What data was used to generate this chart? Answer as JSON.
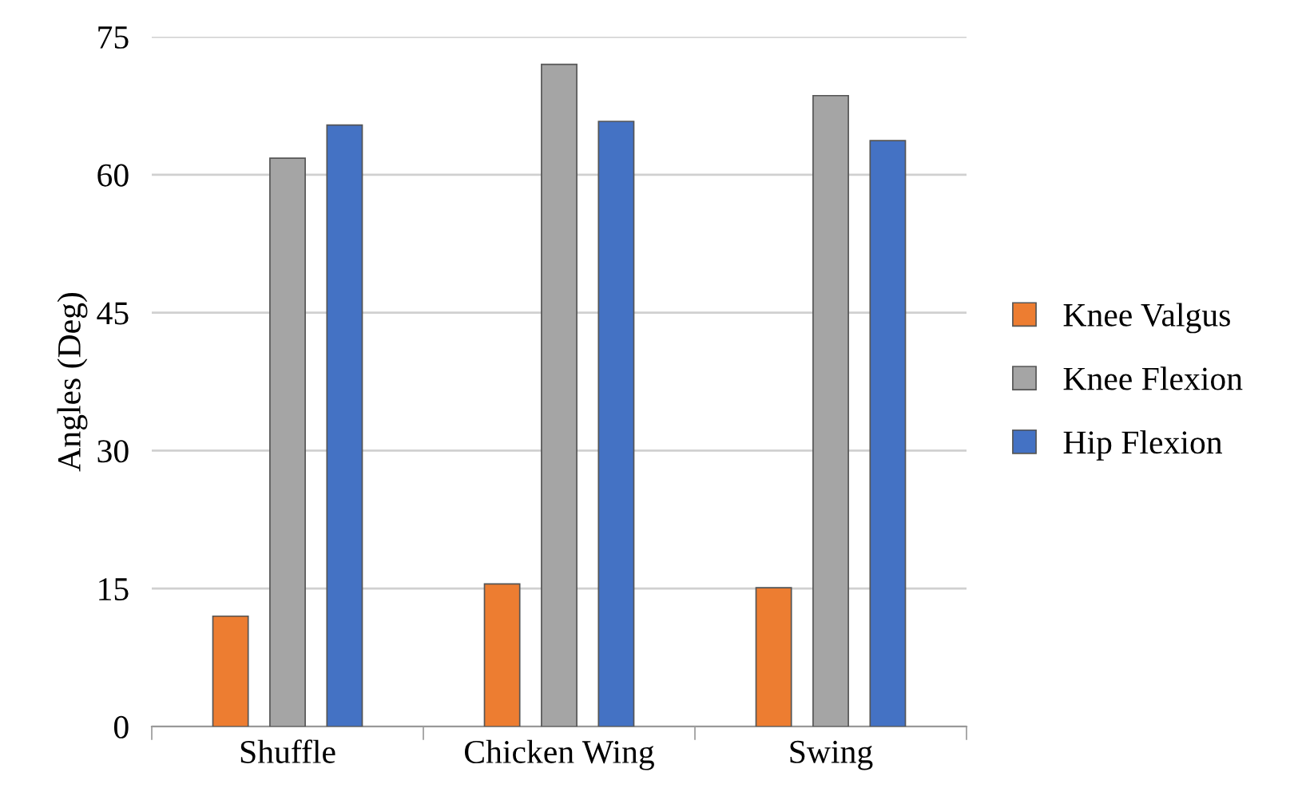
{
  "chart_data": {
    "type": "bar",
    "ylabel": "Angles (Deg)",
    "categories": [
      "Shuffle",
      "Chicken Wing",
      "Swing"
    ],
    "series": [
      {
        "name": "Knee Valgus",
        "color": "#ed7d31",
        "values": [
          12.0,
          15.5,
          15.1
        ]
      },
      {
        "name": "Knee Flexion",
        "color": "#a5a5a5",
        "values": [
          61.8,
          72.0,
          68.6
        ]
      },
      {
        "name": "Hip Flexion",
        "color": "#4472c4",
        "values": [
          65.4,
          65.8,
          63.7
        ]
      }
    ],
    "ylim": [
      0,
      75
    ],
    "yticks": [
      0,
      15,
      30,
      45,
      60,
      75
    ],
    "grid": "y",
    "legend": "right"
  }
}
